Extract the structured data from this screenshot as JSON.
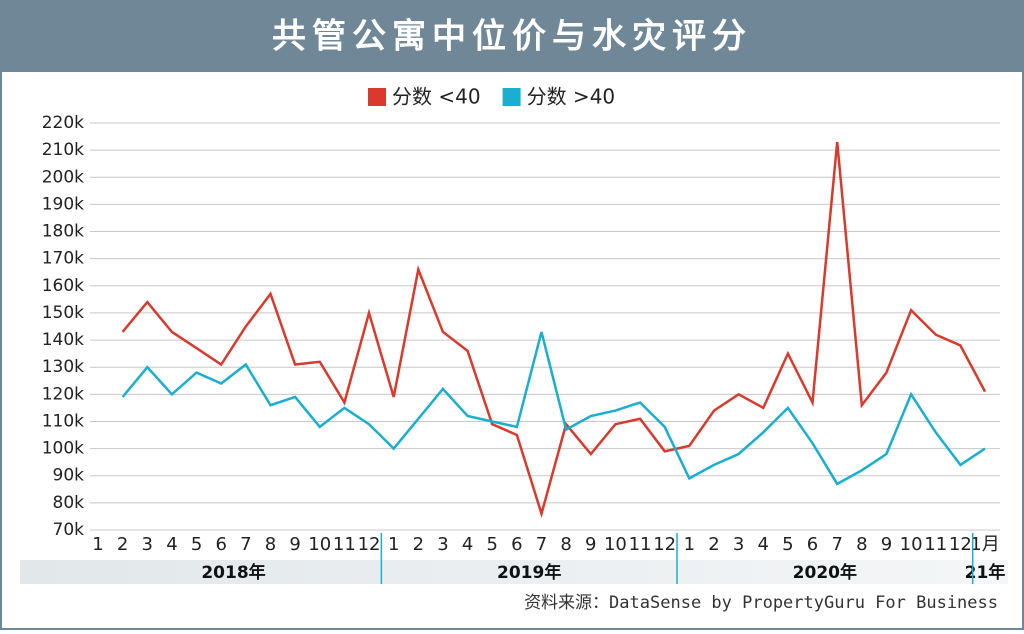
{
  "chart_data": {
    "type": "line",
    "title": "共管公寓中位价与水灾评分",
    "source": "资料来源：DataSense by PropertyGuru For Business",
    "categories": [
      "1",
      "2",
      "3",
      "4",
      "5",
      "6",
      "7",
      "8",
      "9",
      "10",
      "11",
      "12",
      "1",
      "2",
      "3",
      "4",
      "5",
      "6",
      "7",
      "8",
      "9",
      "10",
      "11",
      "12",
      "1",
      "2",
      "3",
      "4",
      "5",
      "6",
      "7",
      "8",
      "9",
      "10",
      "11",
      "12",
      "1月"
    ],
    "year_groups": [
      "2018年",
      "2019年",
      "2020年",
      "21年"
    ],
    "series": [
      {
        "name": "分数 <40",
        "color": "#d93a2b",
        "values": [
          null,
          143,
          154,
          143,
          137,
          131,
          145,
          157,
          131,
          132,
          117,
          150,
          119,
          166,
          143,
          136,
          109,
          105,
          76,
          109,
          98,
          109,
          111,
          99,
          101,
          114,
          120,
          115,
          135,
          117,
          213,
          116,
          128,
          151,
          142,
          138,
          121
        ]
      },
      {
        "name": "分数 >40",
        "color": "#1aaed0",
        "values": [
          null,
          119,
          130,
          120,
          128,
          124,
          131,
          116,
          119,
          108,
          115,
          109,
          100,
          111,
          122,
          112,
          110,
          108,
          143,
          107,
          112,
          114,
          117,
          108,
          89,
          94,
          98,
          106,
          115,
          102,
          87,
          92,
          98,
          120,
          106,
          94,
          100
        ]
      }
    ],
    "ylim": [
      70,
      220
    ],
    "yticks": [
      {
        "value": 70,
        "label": "70k"
      },
      {
        "value": 80,
        "label": "80k"
      },
      {
        "value": 90,
        "label": "90k"
      },
      {
        "value": 100,
        "label": "100k"
      },
      {
        "value": 110,
        "label": "110k"
      },
      {
        "value": 120,
        "label": "120k"
      },
      {
        "value": 130,
        "label": "130k"
      },
      {
        "value": 140,
        "label": "140k"
      },
      {
        "value": 150,
        "label": "150k"
      },
      {
        "value": 160,
        "label": "160k"
      },
      {
        "value": 170,
        "label": "170k"
      },
      {
        "value": 180,
        "label": "180k"
      },
      {
        "value": 190,
        "label": "190k"
      },
      {
        "value": 200,
        "label": "200k"
      },
      {
        "value": 210,
        "label": "210k"
      },
      {
        "value": 220,
        "label": "220k"
      }
    ],
    "grid": true
  }
}
